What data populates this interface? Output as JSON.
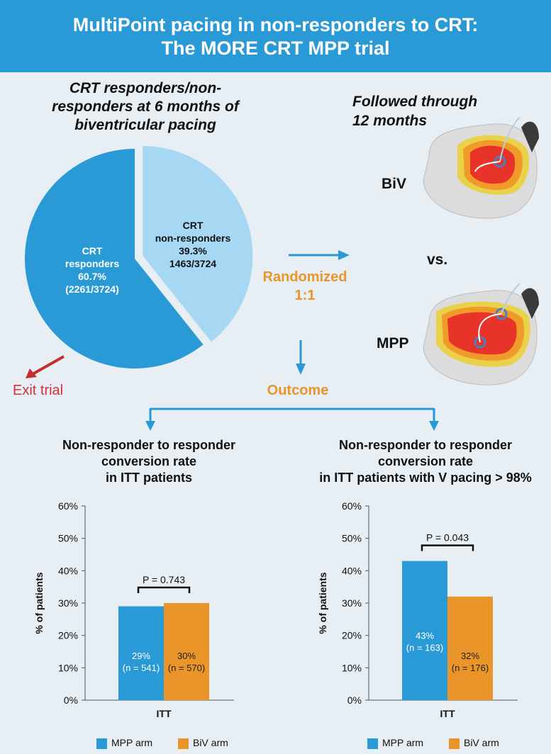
{
  "header": {
    "line1": "MultiPoint pacing in non-responders to CRT:",
    "line2": "The MORE CRT MPP trial"
  },
  "pie_title": {
    "line1": "CRT responders/non-",
    "line2": "responders at 6 months of",
    "line3": "biventricular pacing"
  },
  "pie": {
    "responders": {
      "l1": "CRT",
      "l2": "responders",
      "l3": "60.7%",
      "l4": "(2261/3724)",
      "value": 60.7,
      "color": "#2a9ad6"
    },
    "nonresponders": {
      "l1": "CRT",
      "l2": "non-responders",
      "l3": "39.3%",
      "l4": "1463/3724",
      "value": 39.3,
      "color": "#a6d8f3"
    }
  },
  "exit_label": "Exit trial",
  "followed": {
    "line1": "Followed through",
    "line2": "12 months"
  },
  "randomized": {
    "line1": "Randomized",
    "line2": "1:1"
  },
  "outcome_label": "Outcome",
  "hearts": {
    "top_label": "BiV",
    "vs": "vs.",
    "bottom_label": "MPP"
  },
  "left_section": {
    "line1": "Non-responder to responder",
    "line2": "conversion rate",
    "line3": "in ITT patients"
  },
  "right_section": {
    "line1": "Non-responder to responder",
    "line2": "conversion rate",
    "line3": "in ITT patients with V pacing > 98%"
  },
  "colors": {
    "mpp": "#2a9ad6",
    "biv": "#e9952a",
    "exit_arrow": "#c62f2f",
    "header": "#2a9ad6"
  },
  "chart_data": [
    {
      "type": "bar",
      "categories": [
        "ITT"
      ],
      "series": [
        {
          "name": "MPP arm",
          "values": [
            29
          ],
          "label": "29%",
          "n_label": "(n = 541)"
        },
        {
          "name": "BiV arm",
          "values": [
            30
          ],
          "label": "30%",
          "n_label": "(n = 570)"
        }
      ],
      "ylabel": "% of patients",
      "yticks": [
        "0%",
        "10%",
        "20%",
        "30%",
        "40%",
        "50%",
        "60%"
      ],
      "ylim": [
        0,
        60
      ],
      "pvalue": "P = 0.743",
      "legend": [
        "MPP arm",
        "BiV arm"
      ]
    },
    {
      "type": "bar",
      "categories": [
        "ITT"
      ],
      "series": [
        {
          "name": "MPP arm",
          "values": [
            43
          ],
          "label": "43%",
          "n_label": "(n = 163)"
        },
        {
          "name": "BiV arm",
          "values": [
            32
          ],
          "label": "32%",
          "n_label": "(n = 176)"
        }
      ],
      "ylabel": "% of patients",
      "yticks": [
        "0%",
        "10%",
        "20%",
        "30%",
        "40%",
        "50%",
        "60%"
      ],
      "ylim": [
        0,
        60
      ],
      "pvalue": "P = 0.043",
      "legend": [
        "MPP arm",
        "BiV arm"
      ]
    }
  ]
}
